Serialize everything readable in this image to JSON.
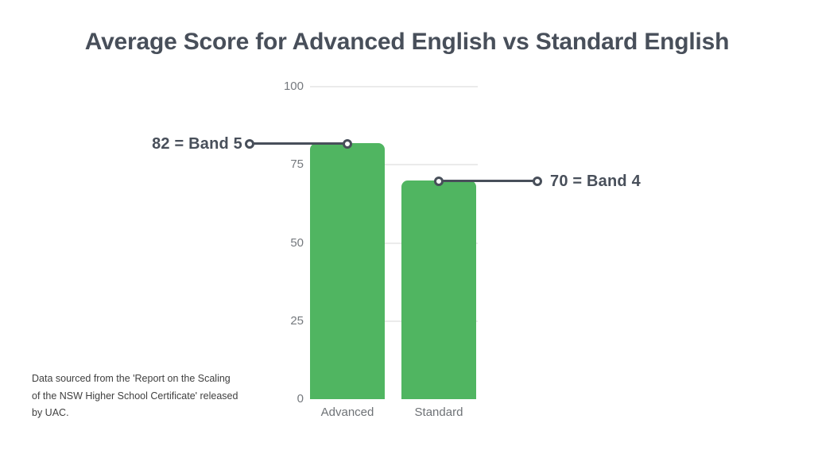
{
  "title": "Average Score for Advanced English vs Standard English",
  "source_note": "Data sourced from the 'Report on the Scaling\nof the NSW Higher School Certificate' released\nby UAC.",
  "chart_data": {
    "type": "bar",
    "title": "Average Score for Advanced English vs Standard English",
    "categories": [
      "Advanced",
      "Standard"
    ],
    "values": [
      82,
      70
    ],
    "xlabel": "",
    "ylabel": "",
    "ylim": [
      0,
      100
    ],
    "yticks": [
      0,
      25,
      50,
      75,
      100
    ],
    "grid": "horizontal",
    "legend": "none",
    "bar_color": "#50B561",
    "annotations": [
      {
        "text": "82 = Band 5",
        "value": 82,
        "category": "Advanced",
        "side": "left"
      },
      {
        "text": "70 = Band 4",
        "value": 70,
        "category": "Standard",
        "side": "right"
      }
    ]
  },
  "colors": {
    "background": "#FFFFFF",
    "bar": "#50B561",
    "title_text": "#484F5A",
    "annotation_text": "#484F5A",
    "connector": "#484F5A",
    "tick_label": "#75797E",
    "category_label": "#6E7276",
    "gridline": "#EBEBEB",
    "note_text": "#404040"
  }
}
